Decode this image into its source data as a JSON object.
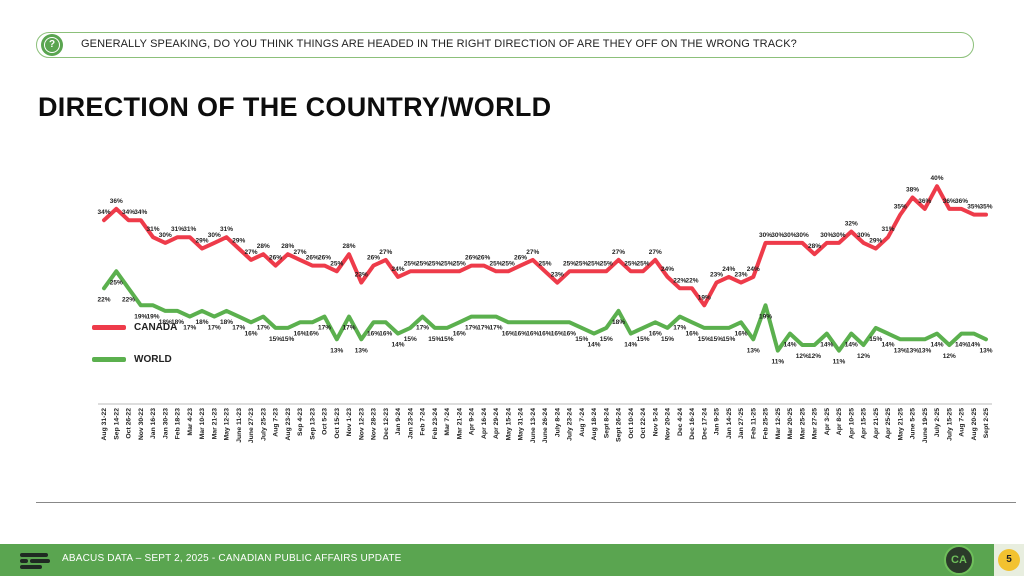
{
  "question": "GENERALLY SPEAKING, DO YOU THINK THINGS ARE HEADED IN THE RIGHT DIRECTION OF ARE THEY OFF ON THE WRONG TRACK?",
  "question_icon": "?",
  "title": "DIRECTION OF THE COUNTRY/WORLD",
  "footer": {
    "text": "ABACUS DATA – SEPT 2, 2025 - CANADIAN PUBLIC AFFAIRS UPDATE",
    "badge": "CA",
    "page": "5"
  },
  "colors": {
    "canada": "#ee3b4a",
    "world": "#5bb04e",
    "footer": "#5aa550",
    "page_badge": "#f2c230"
  },
  "chart_data": {
    "type": "line",
    "legend_position": "left",
    "x": [
      "Aug 31-22",
      "Sep 14-22",
      "Oct 26-22",
      "Nov 30-22",
      "Jan 16-23",
      "Jan 30-23",
      "Feb 18-23",
      "Mar 4-23",
      "Mar 10-23",
      "Mar 21-23",
      "May 12-23",
      "June 11-23",
      "June 27-23",
      "July 25-23",
      "Aug 7-23",
      "Aug 23-23",
      "Sep 4-23",
      "Sep 13-23",
      "Oct 5-23",
      "Oct 15-23",
      "Nov 1-23",
      "Nov 12-23",
      "Nov 28-23",
      "Dec 12-23",
      "Jan 9-24",
      "Jan 23-24",
      "Feb 7-24",
      "Feb 23-24",
      "Mar 7-24",
      "Mar 21-24",
      "Apr 9-24",
      "Apr 16-24",
      "Apr 29-24",
      "May 15-24",
      "May 31-24",
      "June 13-24",
      "June 26-24",
      "July 8-24",
      "July 23-24",
      "Aug 7-24",
      "Aug 18-24",
      "Sept 8-24",
      "Sept 26-24",
      "Oct 10-24",
      "Oct 22-24",
      "Nov 5-24",
      "Nov 20-24",
      "Dec 4-24",
      "Dec 16-24",
      "Dec 17-24",
      "Jan 9-25",
      "Jan 14-25",
      "Jan 27-25",
      "Feb 11-25",
      "Feb 25-25",
      "Mar 12-25",
      "Mar 20-25",
      "Mar 25-25",
      "Mar 27-25",
      "Apr 3-25",
      "Apr 8-25",
      "Apr 10-25",
      "Apr 15-25",
      "Apr 21-25",
      "Apr 25-25",
      "May 21-25",
      "June 5-25",
      "June 19-25",
      "July 2-25",
      "July 15-25",
      "Aug 7-25",
      "Aug 20-25",
      "Sept 2-25"
    ],
    "ylim": [
      0,
      45
    ],
    "series": [
      {
        "name": "CANADA",
        "color": "#ee3b4a",
        "label_side": "above",
        "values": [
          34,
          36,
          34,
          34,
          31,
          30,
          31,
          31,
          29,
          30,
          31,
          29,
          27,
          28,
          26,
          28,
          27,
          26,
          26,
          25,
          28,
          23,
          26,
          27,
          24,
          25,
          25,
          25,
          25,
          25,
          26,
          26,
          25,
          25,
          26,
          27,
          25,
          23,
          25,
          25,
          25,
          25,
          27,
          25,
          25,
          27,
          24,
          22,
          22,
          19,
          23,
          24,
          23,
          24,
          30,
          30,
          30,
          30,
          28,
          30,
          30,
          32,
          30,
          29,
          31,
          35,
          38,
          36,
          40,
          36,
          36,
          35,
          35
        ]
      },
      {
        "name": "WORLD",
        "color": "#5bb04e",
        "label_side": "below",
        "values": [
          22,
          25,
          22,
          19,
          19,
          18,
          18,
          17,
          18,
          17,
          18,
          17,
          16,
          17,
          15,
          15,
          16,
          16,
          17,
          13,
          17,
          13,
          16,
          16,
          14,
          15,
          17,
          15,
          15,
          16,
          17,
          17,
          17,
          16,
          16,
          16,
          16,
          16,
          16,
          15,
          14,
          15,
          18,
          14,
          15,
          16,
          15,
          17,
          16,
          15,
          15,
          15,
          16,
          13,
          19,
          11,
          14,
          12,
          12,
          14,
          11,
          14,
          12,
          15,
          14,
          13,
          13,
          13,
          14,
          12,
          14,
          14,
          13
        ]
      }
    ]
  }
}
